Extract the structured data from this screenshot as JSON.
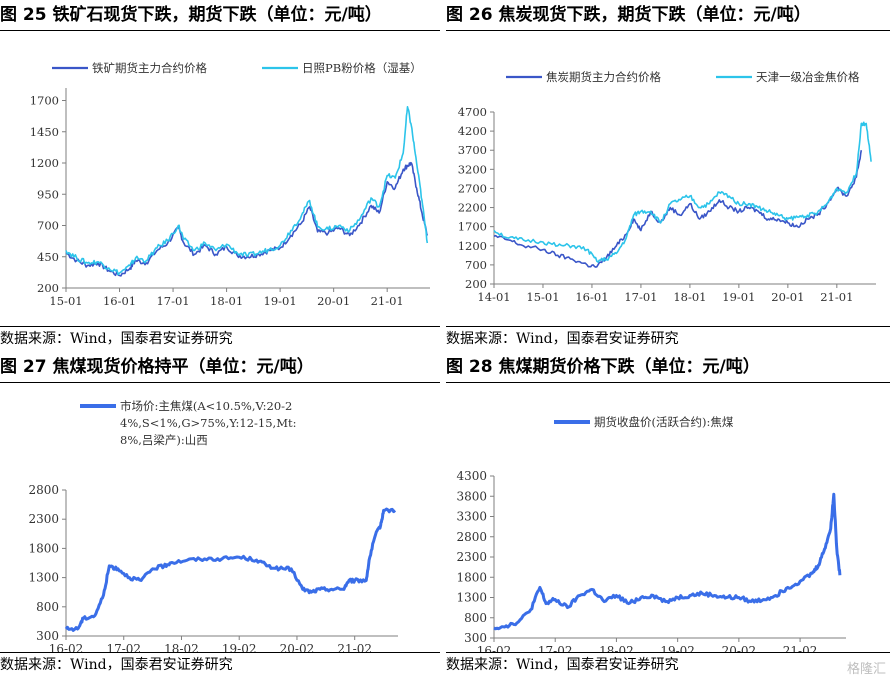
{
  "watermark": "格隆汇",
  "panels": [
    {
      "id": "p25",
      "title": "图 25 铁矿石现货下跌，期货下跌（单位：元/吨）",
      "source": "数据来源：Wind，国泰君安证券研究",
      "chart_data": {
        "type": "line",
        "ylim": [
          200,
          1800
        ],
        "yticks": [
          200,
          450,
          700,
          950,
          1200,
          1450,
          1700
        ],
        "xlim": [
          2015.0,
          2021.8
        ],
        "xticks": [
          {
            "v": 2015.0,
            "label": "15-01"
          },
          {
            "v": 2016.0,
            "label": "16-01"
          },
          {
            "v": 2017.0,
            "label": "17-01"
          },
          {
            "v": 2018.0,
            "label": "18-01"
          },
          {
            "v": 2019.0,
            "label": "19-01"
          },
          {
            "v": 2020.0,
            "label": "20-01"
          },
          {
            "v": 2021.0,
            "label": "21-01"
          }
        ],
        "legend_position": "top",
        "series": [
          {
            "name": "铁矿期货主力合约价格",
            "color": "#3a56c8",
            "x": [
              2015.0,
              2015.2,
              2015.4,
              2015.6,
              2015.8,
              2016.0,
              2016.2,
              2016.3,
              2016.5,
              2016.7,
              2016.9,
              2017.1,
              2017.2,
              2017.4,
              2017.6,
              2017.8,
              2018.0,
              2018.2,
              2018.4,
              2018.6,
              2018.8,
              2019.0,
              2019.2,
              2019.4,
              2019.55,
              2019.7,
              2019.9,
              2020.1,
              2020.3,
              2020.5,
              2020.7,
              2020.85,
              2021.0,
              2021.15,
              2021.3,
              2021.38,
              2021.45,
              2021.55,
              2021.65,
              2021.75
            ],
            "y": [
              480,
              420,
              380,
              400,
              340,
              300,
              360,
              420,
              400,
              500,
              560,
              680,
              560,
              470,
              540,
              470,
              530,
              460,
              450,
              470,
              500,
              520,
              620,
              720,
              850,
              650,
              640,
              680,
              620,
              720,
              860,
              800,
              1050,
              1000,
              1150,
              1180,
              1200,
              1000,
              800,
              620
            ]
          },
          {
            "name": "日照PB粉价格（湿基）",
            "color": "#2cc4ea",
            "x": [
              2015.0,
              2015.2,
              2015.4,
              2015.6,
              2015.8,
              2016.0,
              2016.2,
              2016.3,
              2016.5,
              2016.7,
              2016.9,
              2017.1,
              2017.2,
              2017.4,
              2017.6,
              2017.8,
              2018.0,
              2018.2,
              2018.4,
              2018.6,
              2018.8,
              2019.0,
              2019.2,
              2019.4,
              2019.55,
              2019.7,
              2019.9,
              2020.1,
              2020.3,
              2020.5,
              2020.7,
              2020.85,
              2021.0,
              2021.15,
              2021.3,
              2021.38,
              2021.45,
              2021.55,
              2021.65,
              2021.75
            ],
            "y": [
              500,
              440,
              400,
              410,
              360,
              320,
              380,
              440,
              420,
              520,
              580,
              700,
              590,
              500,
              560,
              500,
              550,
              480,
              460,
              480,
              510,
              540,
              660,
              780,
              900,
              690,
              670,
              700,
              660,
              760,
              920,
              850,
              1100,
              1080,
              1280,
              1650,
              1500,
              1200,
              900,
              560
            ]
          }
        ]
      }
    },
    {
      "id": "p26",
      "title": "图 26 焦炭现货下跌，期货下跌（单位：元/吨）",
      "source": "数据来源：Wind，国泰君安证券研究",
      "chart_data": {
        "type": "line",
        "ylim": [
          200,
          4700
        ],
        "yticks": [
          200,
          700,
          1200,
          1700,
          2200,
          2700,
          3200,
          3700,
          4200,
          4700
        ],
        "xlim": [
          2014.0,
          2021.8
        ],
        "xticks": [
          {
            "v": 2014.0,
            "label": "14-01"
          },
          {
            "v": 2015.0,
            "label": "15-01"
          },
          {
            "v": 2016.0,
            "label": "16-01"
          },
          {
            "v": 2017.0,
            "label": "17-01"
          },
          {
            "v": 2018.0,
            "label": "18-01"
          },
          {
            "v": 2019.0,
            "label": "19-01"
          },
          {
            "v": 2020.0,
            "label": "20-01"
          },
          {
            "v": 2021.0,
            "label": "21-01"
          }
        ],
        "legend_position": "top",
        "series": [
          {
            "name": "焦炭期货主力合约价格",
            "color": "#3a56c8",
            "x": [
              2014.0,
              2014.3,
              2014.6,
              2015.0,
              2015.3,
              2015.6,
              2015.9,
              2016.1,
              2016.3,
              2016.5,
              2016.7,
              2016.85,
              2017.0,
              2017.2,
              2017.4,
              2017.6,
              2017.8,
              2018.0,
              2018.2,
              2018.4,
              2018.6,
              2018.8,
              2019.0,
              2019.2,
              2019.4,
              2019.6,
              2019.8,
              2020.0,
              2020.2,
              2020.4,
              2020.6,
              2020.8,
              2021.0,
              2021.2,
              2021.4,
              2021.5
            ],
            "y": [
              1450,
              1350,
              1200,
              1100,
              950,
              850,
              700,
              650,
              900,
              1200,
              1500,
              1900,
              1600,
              2100,
              1800,
              2200,
              2000,
              2300,
              1900,
              2100,
              2400,
              2200,
              2100,
              2200,
              2100,
              1900,
              1900,
              1800,
              1700,
              1900,
              2000,
              2300,
              2700,
              2500,
              3000,
              3700
            ]
          },
          {
            "name": "天津一级冶金焦价格",
            "color": "#2cc4ea",
            "x": [
              2014.0,
              2014.3,
              2014.6,
              2015.0,
              2015.3,
              2015.6,
              2015.9,
              2016.1,
              2016.3,
              2016.5,
              2016.7,
              2016.85,
              2017.0,
              2017.2,
              2017.4,
              2017.6,
              2017.8,
              2018.0,
              2018.2,
              2018.4,
              2018.6,
              2018.8,
              2019.0,
              2019.2,
              2019.4,
              2019.6,
              2019.8,
              2020.0,
              2020.2,
              2020.4,
              2020.6,
              2020.8,
              2021.0,
              2021.2,
              2021.4,
              2021.5,
              2021.6,
              2021.7
            ],
            "y": [
              1600,
              1400,
              1350,
              1300,
              1200,
              1200,
              1100,
              800,
              850,
              1000,
              1400,
              2000,
              2100,
              2100,
              1800,
              2300,
              2400,
              2500,
              2200,
              2300,
              2600,
              2500,
              2300,
              2300,
              2200,
              2100,
              2000,
              1900,
              1950,
              2000,
              2050,
              2300,
              2700,
              2600,
              3100,
              4400,
              4400,
              3400
            ]
          }
        ]
      }
    },
    {
      "id": "p27",
      "title": "图 27 焦煤现货价格持平（单位：元/吨）",
      "source": "数据来源：Wind，国泰君安证券研究",
      "chart_data": {
        "type": "line",
        "ylim": [
          300,
          2800
        ],
        "yticks": [
          300,
          800,
          1300,
          1800,
          2300,
          2800
        ],
        "xlim": [
          2016.1,
          2021.85
        ],
        "xticks": [
          {
            "v": 2016.1,
            "label": "16-02"
          },
          {
            "v": 2017.1,
            "label": "17-02"
          },
          {
            "v": 2018.1,
            "label": "18-02"
          },
          {
            "v": 2019.1,
            "label": "19-02"
          },
          {
            "v": 2020.1,
            "label": "20-02"
          },
          {
            "v": 2021.1,
            "label": "21-02"
          }
        ],
        "legend_position": "top-left",
        "series": [
          {
            "name": "市场价:主焦煤(A<10.5%,V:20-24%,S<1%,G>75%,Y:12-15,Mt:8%,吕梁产):山西",
            "color": "#3a6ee8",
            "x": [
              2016.1,
              2016.3,
              2016.4,
              2016.6,
              2016.75,
              2016.85,
              2017.0,
              2017.2,
              2017.4,
              2017.6,
              2017.8,
              2017.9,
              2018.2,
              2018.5,
              2018.8,
              2019.1,
              2019.4,
              2019.6,
              2019.8,
              2020.0,
              2020.2,
              2020.35,
              2020.5,
              2020.7,
              2020.9,
              2021.0,
              2021.1,
              2021.3,
              2021.35,
              2021.45,
              2021.55,
              2021.6,
              2021.8
            ],
            "y": [
              420,
              420,
              600,
              650,
              1000,
              1500,
              1450,
              1300,
              1250,
              1450,
              1500,
              1550,
              1600,
              1620,
              1620,
              1650,
              1600,
              1500,
              1450,
              1450,
              1100,
              1050,
              1100,
              1100,
              1100,
              1250,
              1250,
              1250,
              1600,
              2000,
              2200,
              2450,
              2450
            ]
          }
        ]
      }
    },
    {
      "id": "p28",
      "title": "图 28 焦煤期货价格下跌（单位：元/吨）",
      "source": "数据来源：Wind，国泰君安证券研究",
      "chart_data": {
        "type": "line",
        "ylim": [
          300,
          4300
        ],
        "yticks": [
          300,
          800,
          1300,
          1800,
          2300,
          2800,
          3300,
          3800,
          4300
        ],
        "xlim": [
          2016.1,
          2021.85
        ],
        "xticks": [
          {
            "v": 2016.1,
            "label": "16-02"
          },
          {
            "v": 2017.1,
            "label": "17-02"
          },
          {
            "v": 2018.1,
            "label": "18-02"
          },
          {
            "v": 2019.1,
            "label": "19-02"
          },
          {
            "v": 2020.1,
            "label": "20-02"
          },
          {
            "v": 2021.1,
            "label": "21-02"
          }
        ],
        "legend_position": "top",
        "series": [
          {
            "name": "期货收盘价(活跃合约):焦煤",
            "color": "#3a6ee8",
            "x": [
              2016.1,
              2016.3,
              2016.5,
              2016.7,
              2016.85,
              2016.95,
              2017.1,
              2017.3,
              2017.5,
              2017.7,
              2017.9,
              2018.1,
              2018.3,
              2018.5,
              2018.7,
              2018.9,
              2019.1,
              2019.3,
              2019.5,
              2019.7,
              2019.9,
              2020.1,
              2020.3,
              2020.5,
              2020.7,
              2020.9,
              2021.1,
              2021.3,
              2021.4,
              2021.5,
              2021.6,
              2021.65,
              2021.7,
              2021.75
            ],
            "y": [
              550,
              600,
              700,
              1000,
              1550,
              1150,
              1250,
              1050,
              1350,
              1500,
              1200,
              1350,
              1150,
              1300,
              1350,
              1200,
              1300,
              1350,
              1400,
              1350,
              1300,
              1300,
              1200,
              1250,
              1350,
              1550,
              1700,
              1900,
              2100,
              2500,
              3000,
              3850,
              2500,
              1850
            ]
          }
        ]
      }
    }
  ]
}
